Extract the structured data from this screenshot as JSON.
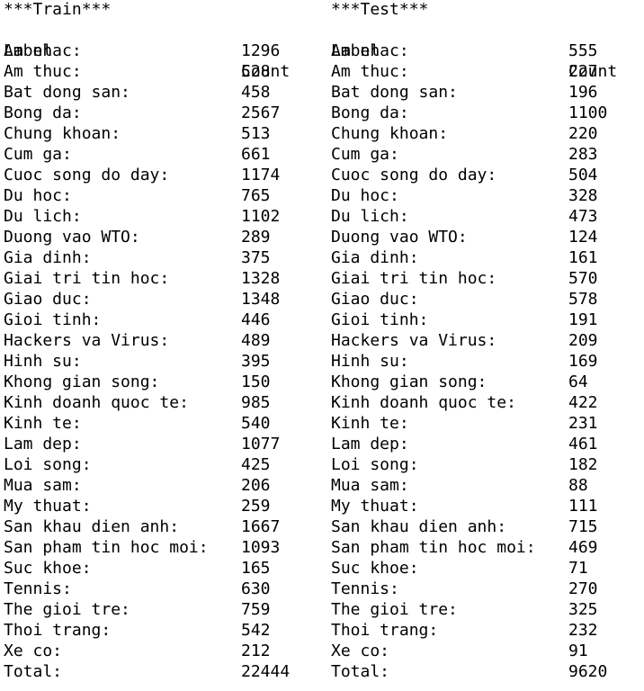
{
  "train": {
    "title": "***Train***",
    "header": {
      "label": "Label",
      "count": "Count"
    },
    "rows": [
      {
        "label": "Am nhac:",
        "count": "1296"
      },
      {
        "label": "Am thuc:",
        "count": "528"
      },
      {
        "label": "Bat dong san:",
        "count": "458"
      },
      {
        "label": "Bong da:",
        "count": "2567"
      },
      {
        "label": "Chung khoan:",
        "count": "513"
      },
      {
        "label": "Cum ga:",
        "count": "661"
      },
      {
        "label": "Cuoc song do day:",
        "count": "1174"
      },
      {
        "label": "Du hoc:",
        "count": "765"
      },
      {
        "label": "Du lich:",
        "count": "1102"
      },
      {
        "label": "Duong vao WTO:",
        "count": "289"
      },
      {
        "label": "Gia dinh:",
        "count": "375"
      },
      {
        "label": "Giai tri tin hoc:",
        "count": "1328"
      },
      {
        "label": "Giao duc:",
        "count": "1348"
      },
      {
        "label": "Gioi tinh:",
        "count": "446"
      },
      {
        "label": "Hackers va Virus:",
        "count": "489"
      },
      {
        "label": "Hinh su:",
        "count": "395"
      },
      {
        "label": "Khong gian song:",
        "count": "150"
      },
      {
        "label": "Kinh doanh quoc te:",
        "count": "985"
      },
      {
        "label": "Kinh te:",
        "count": "540"
      },
      {
        "label": "Lam dep:",
        "count": "1077"
      },
      {
        "label": "Loi song:",
        "count": "425"
      },
      {
        "label": "Mua sam:",
        "count": "206"
      },
      {
        "label": "My thuat:",
        "count": "259"
      },
      {
        "label": "San khau dien anh:",
        "count": "1667"
      },
      {
        "label": "San pham tin hoc moi:",
        "count": "1093"
      },
      {
        "label": "Suc khoe:",
        "count": "165"
      },
      {
        "label": "Tennis:",
        "count": "630"
      },
      {
        "label": "The gioi tre:",
        "count": "759"
      },
      {
        "label": "Thoi trang:",
        "count": "542"
      },
      {
        "label": "Xe co:",
        "count": "212"
      },
      {
        "label": "Total:",
        "count": "22444"
      }
    ]
  },
  "test": {
    "title": "***Test***",
    "header": {
      "label": "Label",
      "count": "Count"
    },
    "rows": [
      {
        "label": "Am nhac:",
        "count": "555"
      },
      {
        "label": "Am thuc:",
        "count": "227"
      },
      {
        "label": "Bat dong san:",
        "count": "196"
      },
      {
        "label": "Bong da:",
        "count": "1100"
      },
      {
        "label": "Chung khoan:",
        "count": "220"
      },
      {
        "label": "Cum ga:",
        "count": "283"
      },
      {
        "label": "Cuoc song do day:",
        "count": "504"
      },
      {
        "label": "Du hoc:",
        "count": "328"
      },
      {
        "label": "Du lich:",
        "count": "473"
      },
      {
        "label": "Duong vao WTO:",
        "count": "124"
      },
      {
        "label": "Gia dinh:",
        "count": "161"
      },
      {
        "label": "Giai tri tin hoc:",
        "count": "570"
      },
      {
        "label": "Giao duc:",
        "count": "578"
      },
      {
        "label": "Gioi tinh:",
        "count": "191"
      },
      {
        "label": "Hackers va Virus:",
        "count": "209"
      },
      {
        "label": "Hinh su:",
        "count": "169"
      },
      {
        "label": "Khong gian song:",
        "count": "64"
      },
      {
        "label": "Kinh doanh quoc te:",
        "count": "422"
      },
      {
        "label": "Kinh te:",
        "count": "231"
      },
      {
        "label": "Lam dep:",
        "count": "461"
      },
      {
        "label": "Loi song:",
        "count": "182"
      },
      {
        "label": "Mua sam:",
        "count": "88"
      },
      {
        "label": "My thuat:",
        "count": "111"
      },
      {
        "label": "San khau dien anh:",
        "count": "715"
      },
      {
        "label": "San pham tin hoc moi:",
        "count": "469"
      },
      {
        "label": "Suc khoe:",
        "count": "71"
      },
      {
        "label": "Tennis:",
        "count": "270"
      },
      {
        "label": "The gioi tre:",
        "count": "325"
      },
      {
        "label": "Thoi trang:",
        "count": "232"
      },
      {
        "label": "Xe co:",
        "count": "91"
      },
      {
        "label": "Total:",
        "count": "9620"
      }
    ]
  }
}
